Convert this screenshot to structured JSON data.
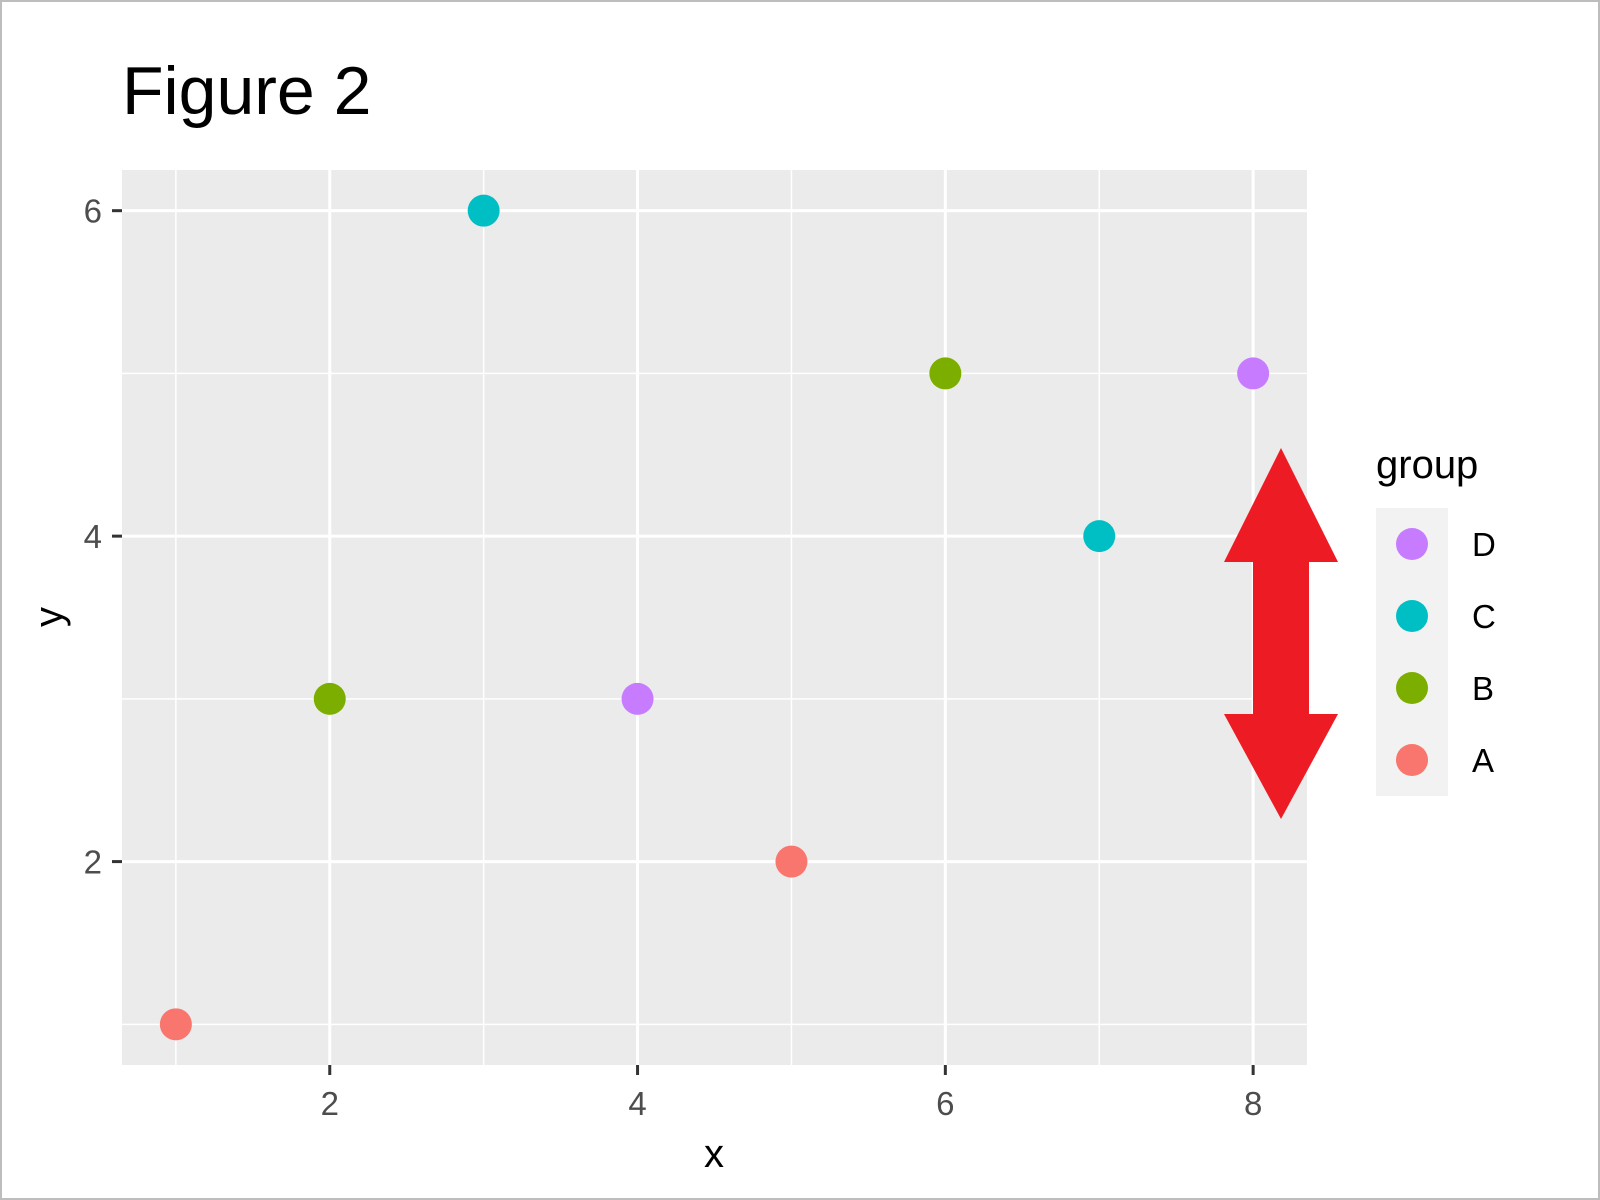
{
  "chart_data": {
    "type": "scatter",
    "title": "Figure 2",
    "xlabel": "x",
    "ylabel": "y",
    "xlim": [
      0.65,
      8.35
    ],
    "ylim": [
      0.75,
      6.25
    ],
    "x_ticks": [
      2,
      4,
      6,
      8
    ],
    "y_ticks": [
      2,
      4,
      6
    ],
    "x_tick_labels": [
      "2",
      "4",
      "6",
      "8"
    ],
    "y_tick_labels": [
      "2",
      "4",
      "6"
    ],
    "grid": true,
    "legend": {
      "title": "group",
      "placement": "right",
      "entries": [
        {
          "label": "D",
          "color": "#C77CFF"
        },
        {
          "label": "C",
          "color": "#00BFC4"
        },
        {
          "label": "B",
          "color": "#7CAE00"
        },
        {
          "label": "A",
          "color": "#F8766D"
        }
      ]
    },
    "points": [
      {
        "x": 1,
        "y": 1,
        "group": "A"
      },
      {
        "x": 2,
        "y": 3,
        "group": "B"
      },
      {
        "x": 3,
        "y": 6,
        "group": "C"
      },
      {
        "x": 4,
        "y": 3,
        "group": "D"
      },
      {
        "x": 5,
        "y": 2,
        "group": "A"
      },
      {
        "x": 6,
        "y": 5,
        "group": "B"
      },
      {
        "x": 7,
        "y": 4,
        "group": "C"
      },
      {
        "x": 8,
        "y": 5,
        "group": "D"
      }
    ],
    "annotation": {
      "shape": "double-headed-arrow",
      "direction": "vertical",
      "color": "#ED1C24"
    }
  }
}
